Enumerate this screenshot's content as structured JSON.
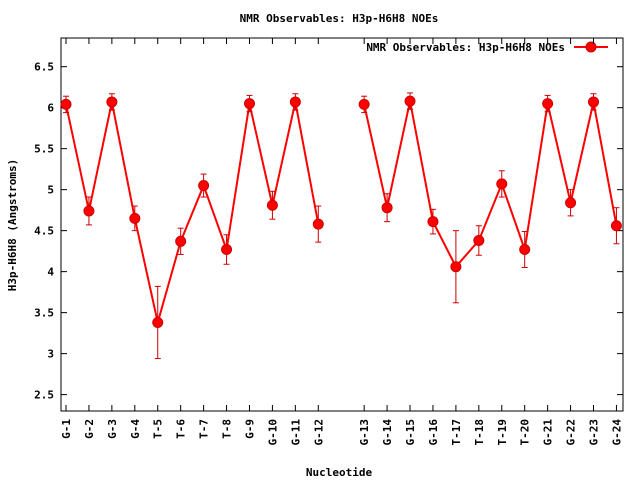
{
  "chart_data": {
    "type": "line",
    "title": "NMR Observables: H3p-H6H8 NOEs",
    "xlabel": "Nucleotide",
    "ylabel": "H3p-H6H8 (Angstroms)",
    "ylim": [
      2.3,
      6.85
    ],
    "yticks": [
      "2.5",
      "3",
      "3.5",
      "4",
      "4.5",
      "5",
      "5.5",
      "6",
      "6.5"
    ],
    "grid": false,
    "legend_position": "top-right",
    "series_color": "#ff0000",
    "errorbar_color": "#cc0000",
    "series": [
      {
        "name": "NMR Observables: H3p-H6H8 NOEs",
        "segments": [
          {
            "categories": [
              "G-1",
              "G-2",
              "G-3",
              "G-4",
              "T-5",
              "T-6",
              "T-7",
              "T-8",
              "G-9",
              "G-10",
              "G-11",
              "G-12"
            ],
            "values": [
              6.04,
              4.74,
              6.07,
              4.65,
              3.38,
              4.37,
              5.05,
              4.27,
              6.05,
              4.81,
              6.07,
              4.58
            ],
            "errors": [
              0.1,
              0.17,
              0.1,
              0.15,
              0.44,
              0.16,
              0.14,
              0.18,
              0.1,
              0.17,
              0.1,
              0.22
            ]
          },
          {
            "categories": [
              "G-13",
              "G-14",
              "G-15",
              "G-16",
              "T-17",
              "T-18",
              "T-19",
              "T-20",
              "G-21",
              "G-22",
              "G-23",
              "G-24"
            ],
            "values": [
              6.04,
              4.78,
              6.08,
              4.61,
              4.06,
              4.38,
              5.07,
              4.27,
              6.05,
              4.84,
              6.07,
              4.56
            ],
            "errors": [
              0.1,
              0.17,
              0.1,
              0.15,
              0.44,
              0.18,
              0.16,
              0.22,
              0.1,
              0.16,
              0.1,
              0.22
            ]
          }
        ]
      }
    ]
  }
}
